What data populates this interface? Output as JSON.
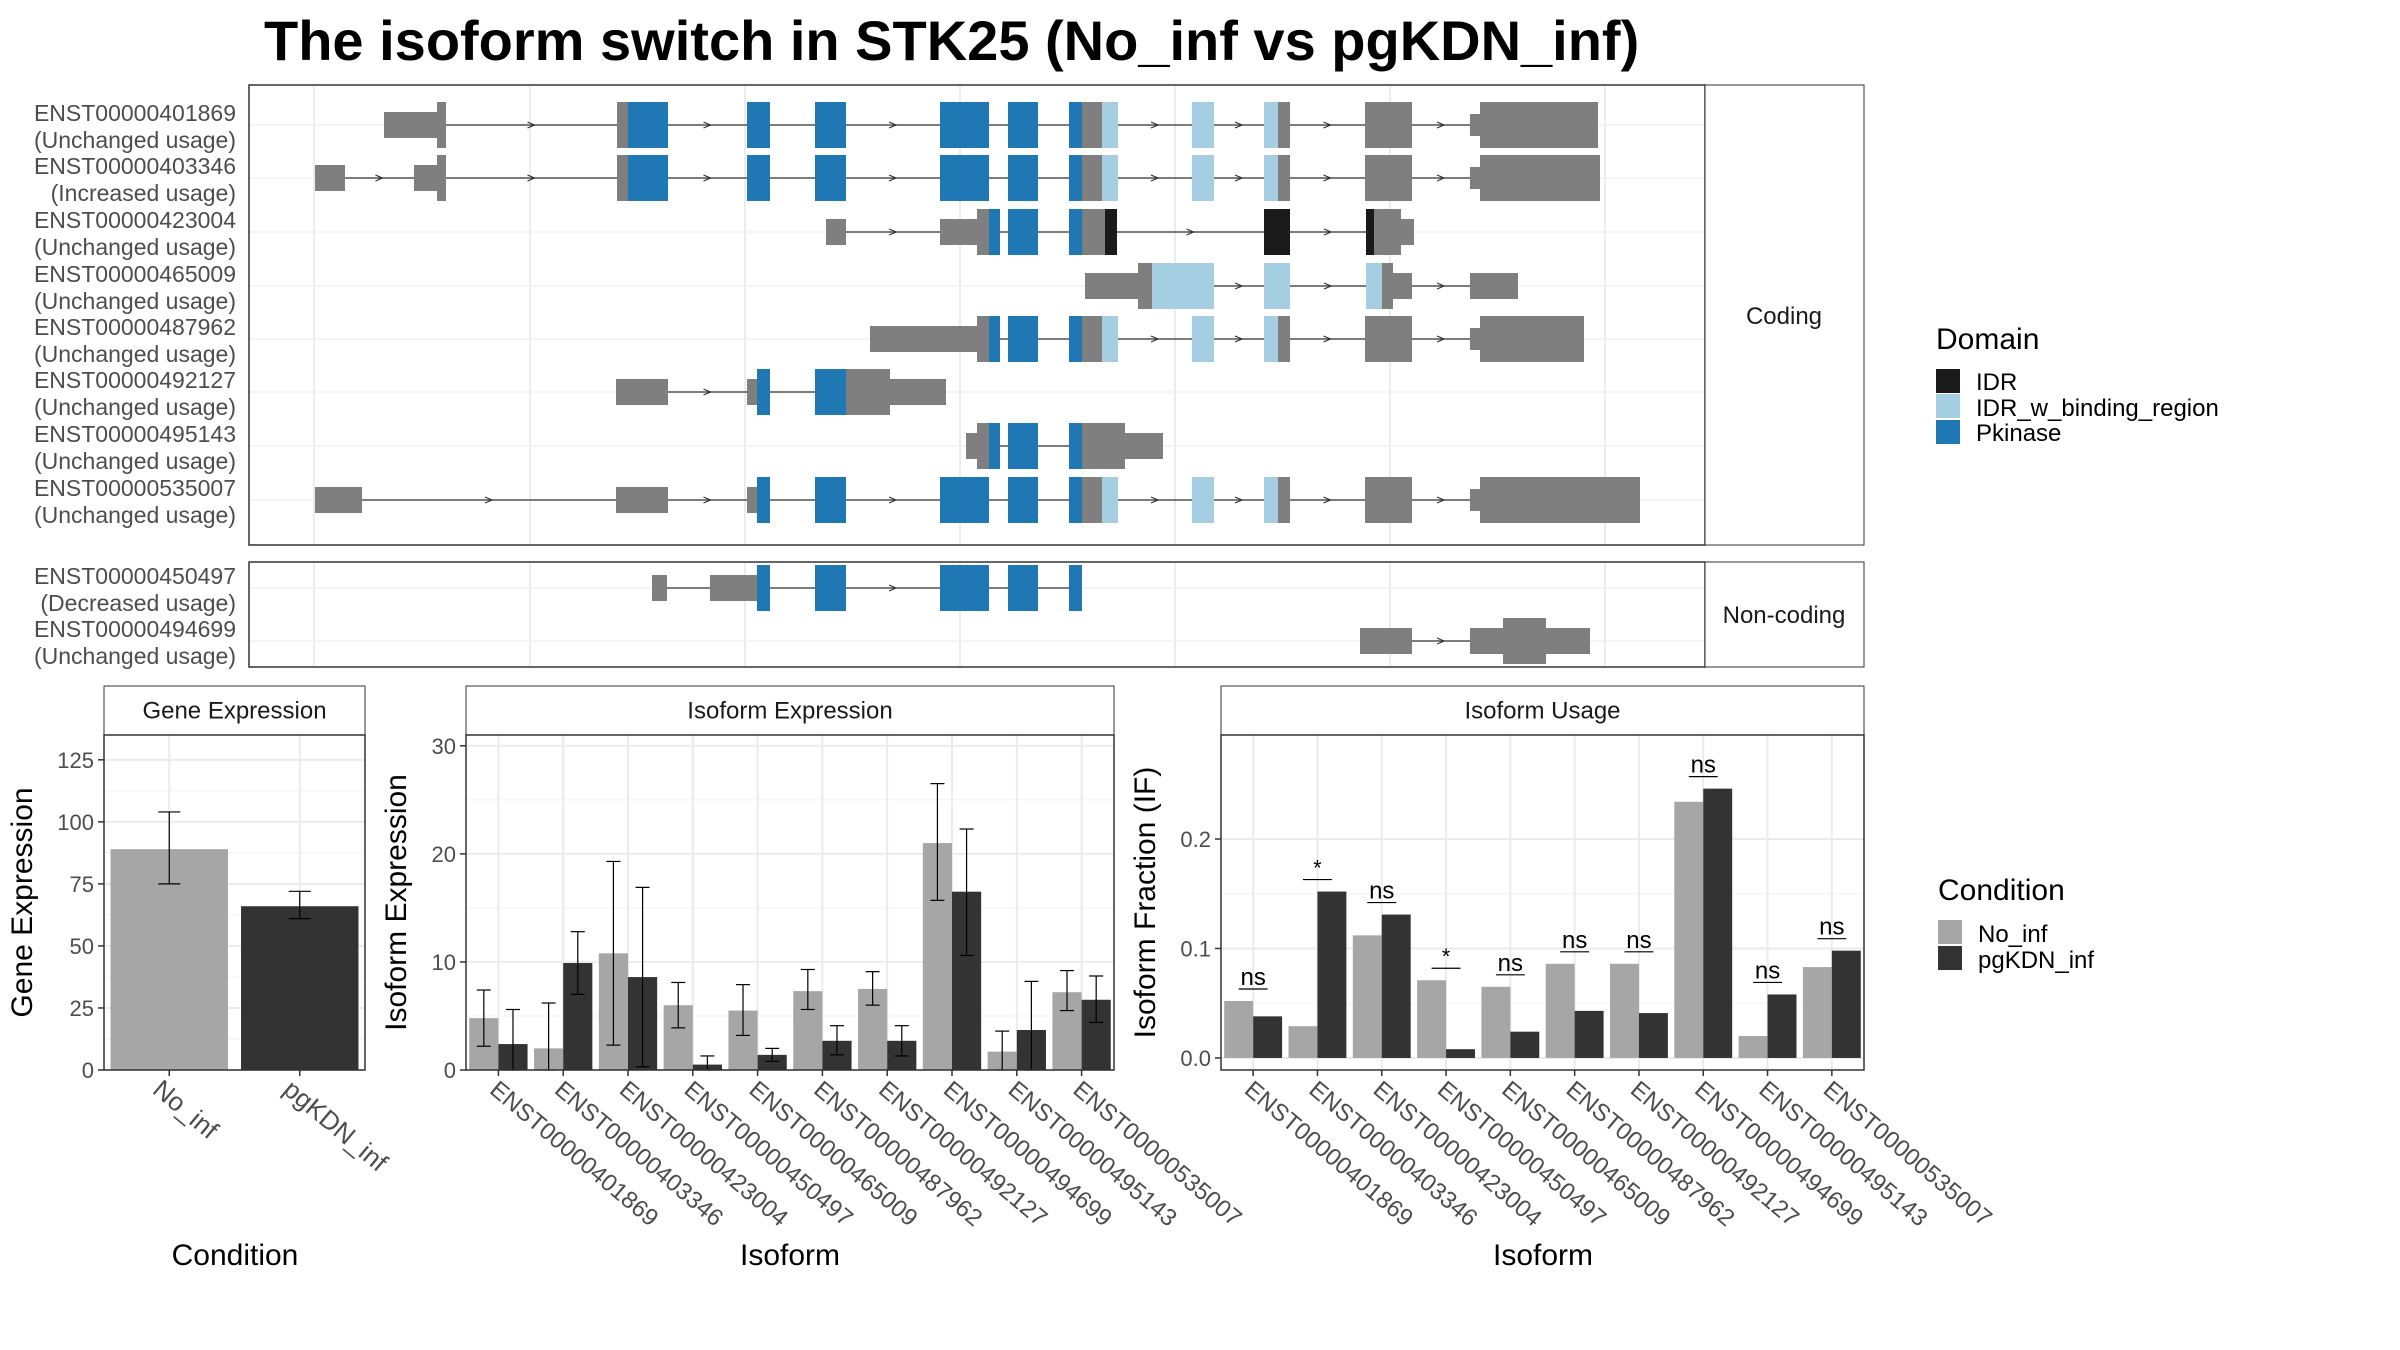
{
  "title": "The isoform switch in STK25 (No_inf vs pgKDN_inf)",
  "colors": {
    "No_inf": "#a6a6a6",
    "pgKDN_inf": "#333333",
    "IDR": "#1a1a1a",
    "IDR_w_binding_region": "#a6cee3",
    "Pkinase": "#1f78b4",
    "exon": "#7f7f7f"
  },
  "structure": {
    "strip_coding": "Coding",
    "strip_noncoding": "Non-coding",
    "domain_legend_title": "Domain",
    "domain_legend": [
      "IDR",
      "IDR_w_binding_region",
      "Pkinase"
    ],
    "coding": [
      {
        "id": "ENST00000401869",
        "usage": "(Unchanged usage)"
      },
      {
        "id": "ENST00000403346",
        "usage": "(Increased usage)"
      },
      {
        "id": "ENST00000423004",
        "usage": "(Unchanged usage)"
      },
      {
        "id": "ENST00000465009",
        "usage": "(Unchanged usage)"
      },
      {
        "id": "ENST00000487962",
        "usage": "(Unchanged usage)"
      },
      {
        "id": "ENST00000492127",
        "usage": "(Unchanged usage)"
      },
      {
        "id": "ENST00000495143",
        "usage": "(Unchanged usage)"
      },
      {
        "id": "ENST00000535007",
        "usage": "(Unchanged usage)"
      }
    ],
    "noncoding": [
      {
        "id": "ENST00000450497",
        "usage": "(Decreased usage)"
      },
      {
        "id": "ENST00000494699",
        "usage": "(Unchanged usage)"
      }
    ]
  },
  "condition_legend_title": "Condition",
  "chart_data": [
    {
      "type": "bar",
      "title": "Gene Expression",
      "xlabel": "Condition",
      "ylabel": "Gene Expression",
      "ylim": [
        0,
        135
      ],
      "yticks": [
        0,
        25,
        50,
        75,
        100,
        125
      ],
      "categories": [
        "No_inf",
        "pgKDN_inf"
      ],
      "values": [
        89,
        66
      ],
      "err_low": [
        75,
        61
      ],
      "err_high": [
        104,
        72
      ]
    },
    {
      "type": "bar",
      "title": "Isoform Expression",
      "xlabel": "Isoform",
      "ylabel": "Isoform Expression",
      "ylim": [
        0,
        31
      ],
      "yticks": [
        0,
        10,
        20,
        30
      ],
      "categories": [
        "ENST00000401869",
        "ENST00000403346",
        "ENST00000423004",
        "ENST00000450497",
        "ENST00000465009",
        "ENST00000487962",
        "ENST00000492127",
        "ENST00000494699",
        "ENST00000495143",
        "ENST00000535007"
      ],
      "series": [
        {
          "name": "No_inf",
          "values": [
            4.8,
            2.0,
            10.8,
            6.0,
            5.5,
            7.3,
            7.5,
            21.0,
            1.7,
            7.2
          ],
          "err_low": [
            2.2,
            -2.2,
            2.3,
            3.9,
            3.2,
            5.6,
            6.0,
            15.7,
            -0.3,
            5.5
          ],
          "err_high": [
            7.4,
            6.2,
            19.3,
            8.1,
            7.9,
            9.3,
            9.1,
            26.5,
            3.6,
            9.2
          ]
        },
        {
          "name": "pgKDN_inf",
          "values": [
            2.4,
            9.9,
            8.6,
            0.5,
            1.4,
            2.7,
            2.7,
            16.5,
            3.7,
            6.5
          ],
          "err_low": [
            -0.8,
            7.0,
            0.3,
            -0.3,
            0.8,
            1.4,
            1.3,
            10.6,
            -0.7,
            4.4
          ],
          "err_high": [
            5.6,
            12.8,
            16.9,
            1.3,
            2.0,
            4.1,
            4.1,
            22.3,
            8.2,
            8.7
          ]
        }
      ]
    },
    {
      "type": "bar",
      "title": "Isoform Usage",
      "xlabel": "Isoform",
      "ylabel": "Isoform Fraction (IF)",
      "ylim": [
        -0.011,
        0.295
      ],
      "yticks": [
        0.0,
        0.1,
        0.2
      ],
      "ytick_labels": [
        "0.0",
        "0.1",
        "0.2"
      ],
      "categories": [
        "ENST00000401869",
        "ENST00000403346",
        "ENST00000423004",
        "ENST00000450497",
        "ENST00000465009",
        "ENST00000487962",
        "ENST00000492127",
        "ENST00000494699",
        "ENST00000495143",
        "ENST00000535007"
      ],
      "series": [
        {
          "name": "No_inf",
          "values": [
            0.052,
            0.029,
            0.112,
            0.071,
            0.065,
            0.086,
            0.086,
            0.234,
            0.02,
            0.083
          ]
        },
        {
          "name": "pgKDN_inf",
          "values": [
            0.038,
            0.152,
            0.131,
            0.008,
            0.024,
            0.043,
            0.041,
            0.246,
            0.058,
            0.098
          ]
        }
      ],
      "significance": [
        "ns",
        "*",
        "ns",
        "*",
        "ns",
        "ns",
        "ns",
        "ns",
        "ns",
        "ns"
      ]
    }
  ]
}
